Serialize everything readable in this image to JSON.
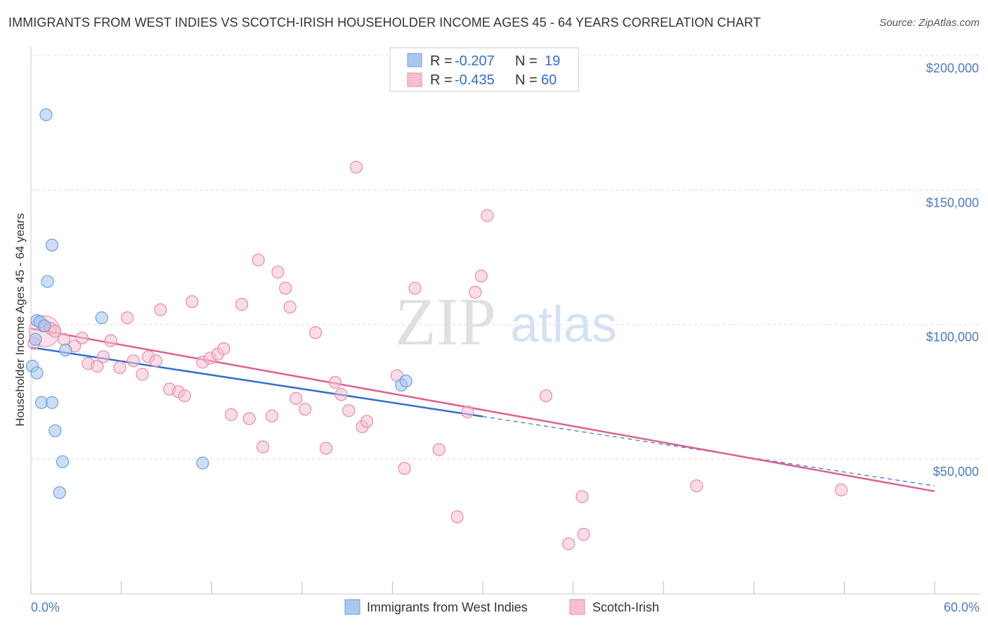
{
  "header": {
    "title": "IMMIGRANTS FROM WEST INDIES VS SCOTCH-IRISH HOUSEHOLDER INCOME AGES 45 - 64 YEARS CORRELATION CHART",
    "source": "Source: ZipAtlas.com"
  },
  "watermark": {
    "zip": "ZIP",
    "atlas": "atlas"
  },
  "legend_top": {
    "rows": [
      {
        "r_label": "R = ",
        "r_value": "-0.207",
        "n_label": "N = ",
        "n_value": "19"
      },
      {
        "r_label": "R = ",
        "r_value": "-0.435",
        "n_label": "N = ",
        "n_value": "60"
      }
    ]
  },
  "legend_bottom": {
    "items": [
      {
        "label": "Immigrants from West Indies"
      },
      {
        "label": "Scotch-Irish"
      }
    ]
  },
  "colors": {
    "blue_fill": "#a9c8f0",
    "blue_stroke": "#6f9fdc",
    "blue_line": "#2f6fd0",
    "pink_fill": "#f6bfd0",
    "pink_stroke": "#e88aa8",
    "pink_line": "#e0608c",
    "value_text": "#2f6fd0",
    "grid": "#dddddd"
  },
  "chart_data": {
    "type": "scatter",
    "title": "IMMIGRANTS FROM WEST INDIES VS SCOTCH-IRISH HOUSEHOLDER INCOME AGES 45 - 64 YEARS CORRELATION CHART",
    "xlabel": "",
    "ylabel": "Householder Income Ages 45 - 64 years",
    "xlim": [
      0,
      60
    ],
    "ylim": [
      0,
      210000
    ],
    "x_tick_labels": [
      "0.0%",
      "60.0%"
    ],
    "y_ticks": [
      50000,
      100000,
      150000,
      200000
    ],
    "y_tick_labels": [
      "$50,000",
      "$100,000",
      "$150,000",
      "$200,000"
    ],
    "grid": true,
    "series": [
      {
        "name": "Immigrants from West Indies",
        "r": -0.207,
        "n": 19,
        "trend": {
          "x0": 0,
          "y0": 91500,
          "x1": 30,
          "y1": 65800,
          "dashed_to_x": 60,
          "dashed_to_y": 40000
        },
        "points": [
          [
            1.0,
            178000
          ],
          [
            0.4,
            101500
          ],
          [
            0.6,
            101000
          ],
          [
            0.9,
            99500
          ],
          [
            0.3,
            94500
          ],
          [
            0.1,
            84500
          ],
          [
            0.4,
            82000
          ],
          [
            2.3,
            90500
          ],
          [
            1.4,
            129500
          ],
          [
            1.1,
            116000
          ],
          [
            4.7,
            102500
          ],
          [
            0.7,
            71000
          ],
          [
            1.4,
            71000
          ],
          [
            1.6,
            60500
          ],
          [
            2.1,
            49000
          ],
          [
            1.9,
            37500
          ],
          [
            11.4,
            48500
          ],
          [
            24.6,
            77500
          ],
          [
            24.9,
            79000
          ]
        ]
      },
      {
        "name": "Scotch-Irish",
        "r": -0.435,
        "n": 60,
        "trend": {
          "x0": 0,
          "y0": 98500,
          "x1": 60,
          "y1": 38000
        },
        "points": [
          [
            0.2,
            93000
          ],
          [
            0.8,
            99500
          ],
          [
            1.3,
            98500
          ],
          [
            1.6,
            97500
          ],
          [
            2.2,
            94500
          ],
          [
            2.9,
            92000
          ],
          [
            3.4,
            95000
          ],
          [
            3.8,
            85500
          ],
          [
            4.4,
            84500
          ],
          [
            4.8,
            88000
          ],
          [
            5.3,
            94000
          ],
          [
            5.9,
            84000
          ],
          [
            6.4,
            102500
          ],
          [
            6.8,
            86500
          ],
          [
            7.4,
            81500
          ],
          [
            7.8,
            88000
          ],
          [
            8.3,
            86500
          ],
          [
            8.6,
            105500
          ],
          [
            9.2,
            76000
          ],
          [
            9.8,
            75000
          ],
          [
            10.2,
            73500
          ],
          [
            10.7,
            108500
          ],
          [
            11.4,
            86000
          ],
          [
            11.9,
            87500
          ],
          [
            12.4,
            89000
          ],
          [
            12.8,
            91000
          ],
          [
            13.3,
            66500
          ],
          [
            14.0,
            107500
          ],
          [
            14.5,
            65000
          ],
          [
            15.1,
            124000
          ],
          [
            15.4,
            54500
          ],
          [
            16.0,
            66000
          ],
          [
            16.4,
            119500
          ],
          [
            16.9,
            113500
          ],
          [
            17.2,
            106500
          ],
          [
            17.6,
            72500
          ],
          [
            18.2,
            68500
          ],
          [
            18.9,
            97000
          ],
          [
            19.6,
            54000
          ],
          [
            20.2,
            78500
          ],
          [
            20.6,
            74000
          ],
          [
            21.1,
            68000
          ],
          [
            21.6,
            158500
          ],
          [
            22.0,
            62000
          ],
          [
            22.3,
            64000
          ],
          [
            24.3,
            81000
          ],
          [
            24.8,
            46500
          ],
          [
            25.5,
            113500
          ],
          [
            27.1,
            53500
          ],
          [
            28.3,
            28500
          ],
          [
            29.0,
            67500
          ],
          [
            29.5,
            112000
          ],
          [
            29.9,
            118000
          ],
          [
            30.3,
            140500
          ],
          [
            34.2,
            73500
          ],
          [
            35.7,
            18500
          ],
          [
            36.6,
            36000
          ],
          [
            36.7,
            22000
          ],
          [
            44.2,
            40000
          ],
          [
            53.8,
            38500
          ]
        ]
      }
    ]
  }
}
